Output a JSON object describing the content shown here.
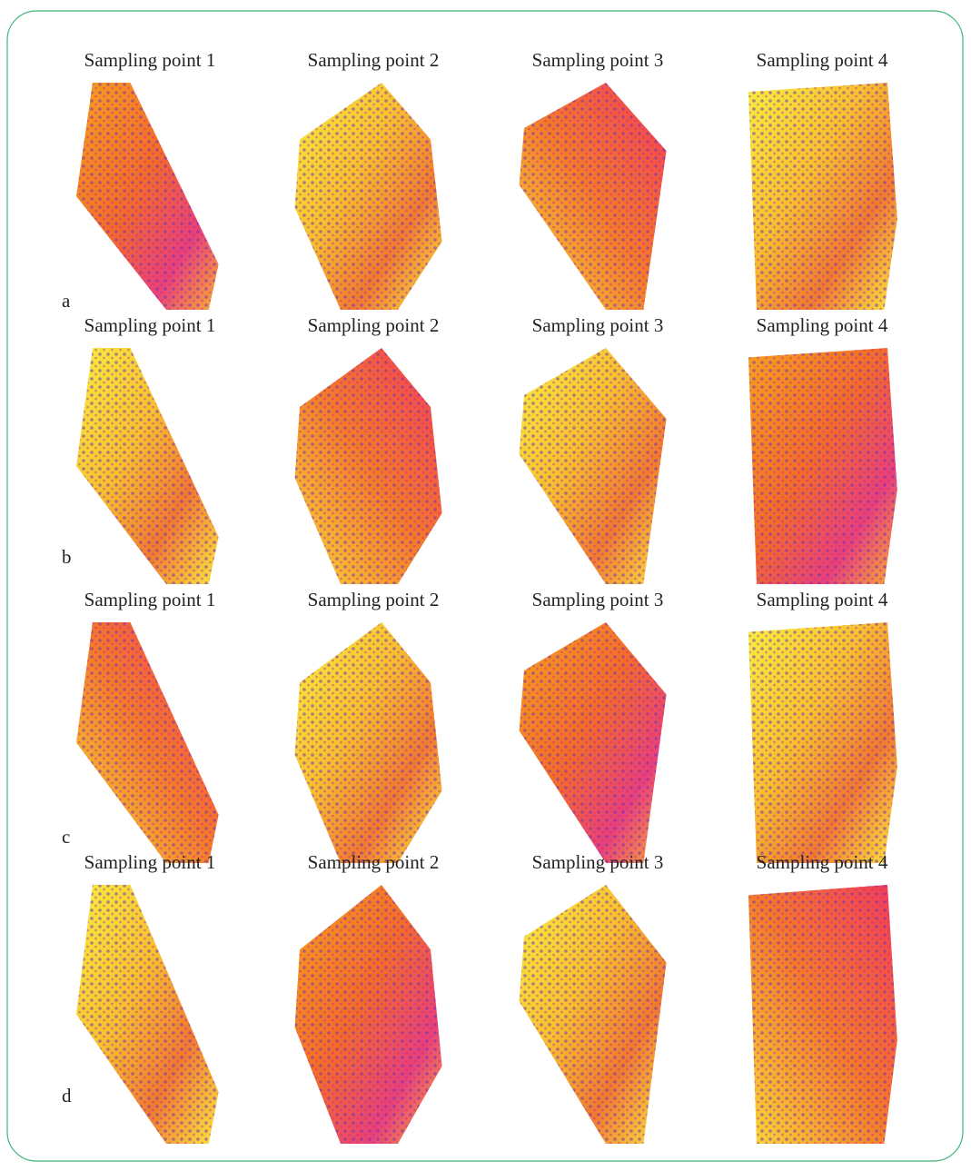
{
  "figure": {
    "rows": [
      {
        "label": "a",
        "panels": [
          "Sampling point 1",
          "Sampling point 2",
          "Sampling point 3",
          "Sampling point 4"
        ]
      },
      {
        "label": "b",
        "panels": [
          "Sampling point 1",
          "Sampling point 2",
          "Sampling point 3",
          "Sampling point 4"
        ]
      },
      {
        "label": "c",
        "panels": [
          "Sampling point 1",
          "Sampling point 2",
          "Sampling point 3",
          "Sampling point 4"
        ]
      },
      {
        "label": "d",
        "panels": [
          "Sampling point 1",
          "Sampling point 2",
          "Sampling point 3",
          "Sampling point 4"
        ]
      }
    ]
  }
}
